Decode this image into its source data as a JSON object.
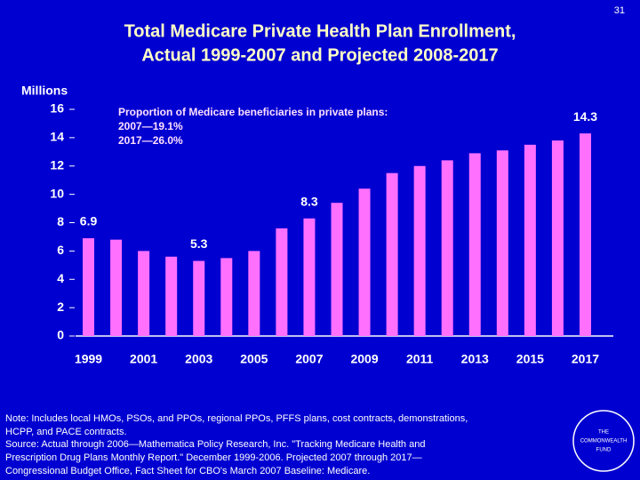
{
  "page_number": "31",
  "chart_data": {
    "type": "bar",
    "title": [
      "Total Medicare Private Health Plan Enrollment,",
      "Actual 1999-2007 and Projected 2008-2017"
    ],
    "y_label": "Millions",
    "annotation": [
      "Proportion of Medicare beneficiaries in private plans:",
      "2007—19.1%",
      "2017—26.0%"
    ],
    "categories": [
      "1999",
      null,
      "2001",
      null,
      "2003",
      null,
      "2005",
      null,
      "2007",
      null,
      "2009",
      null,
      "2011",
      null,
      "2013",
      null,
      "2015",
      null,
      "2017"
    ],
    "values": [
      6.9,
      6.8,
      6.0,
      5.6,
      5.3,
      5.5,
      6.0,
      7.6,
      8.3,
      9.4,
      10.4,
      11.5,
      12.0,
      12.4,
      12.9,
      13.1,
      13.5,
      13.8,
      14.3
    ],
    "value_labels": [
      "6.9",
      null,
      null,
      null,
      "5.3",
      null,
      null,
      null,
      "8.3",
      null,
      null,
      null,
      null,
      null,
      null,
      null,
      null,
      null,
      "14.3"
    ],
    "color": "#ff70ff",
    "ylim": [
      0,
      16
    ],
    "yticks": [
      0,
      2,
      4,
      6,
      8,
      10,
      12,
      14,
      16
    ]
  },
  "notes": [
    "Note: Includes local HMOs, PSOs, and PPOs, regional PPOs, PFFS plans, cost contracts, demonstrations,",
    "HCPP, and PACE contracts.",
    "Source: Actual through 2006—Mathematica Policy Research, Inc. \"Tracking Medicare Health and",
    "Prescription Drug Plans Monthly Report.\" December 1999-2006. Projected 2007 through 2017—",
    "Congressional Budget Office, Fact Sheet for CBO's March 2007 Baseline: Medicare."
  ],
  "logo": [
    "THE",
    "COMMONWEALTH",
    "FUND"
  ]
}
